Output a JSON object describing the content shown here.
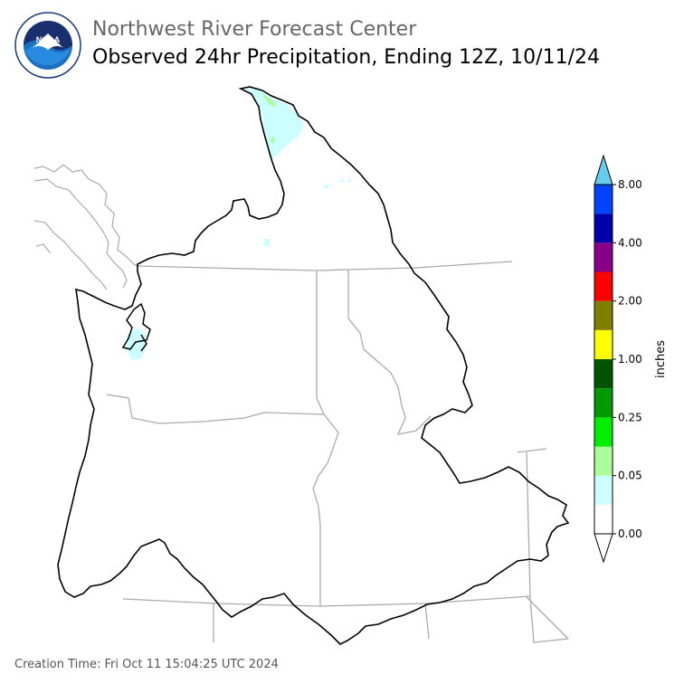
{
  "header": {
    "org_title": "Northwest River Forecast Center",
    "product_title": "Observed 24hr Precipitation, Ending 12Z, 10/11/24"
  },
  "logo": {
    "center_text": "NOAA",
    "ring_text": "NATIONAL OCEANIC AND ATMOSPHERIC ADMINISTRATION · U.S. DEPARTMENT OF COMMERCE"
  },
  "legend": {
    "unit_label": "inches",
    "tick_labels": [
      "0.00",
      "0.05",
      "0.25",
      "1.00",
      "2.00",
      "4.00",
      "8.00"
    ],
    "bins": [
      {
        "color": "#ffffff"
      },
      {
        "color": "#ccffff"
      },
      {
        "color": "#aaff99"
      },
      {
        "color": "#00ee00"
      },
      {
        "color": "#009900"
      },
      {
        "color": "#005500"
      },
      {
        "color": "#ffff00"
      },
      {
        "color": "#808000"
      },
      {
        "color": "#ff0000"
      },
      {
        "color": "#880088"
      },
      {
        "color": "#0000aa"
      },
      {
        "color": "#0044ff"
      }
    ],
    "over_color": "#66ccee",
    "under_color": "#ffffff"
  },
  "footer": {
    "creation_time": "Creation Time: Fri Oct 11 15:04:25 UTC 2024"
  }
}
